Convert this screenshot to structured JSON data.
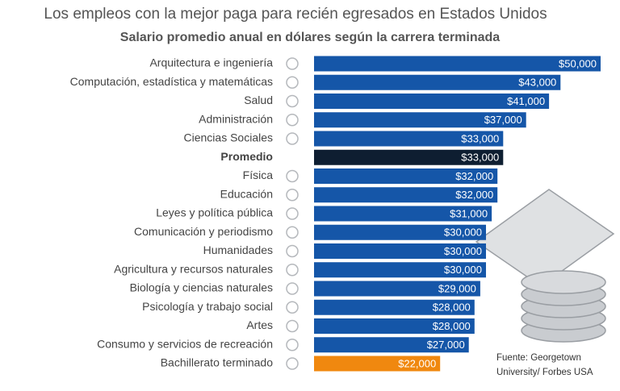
{
  "chart_data": {
    "type": "barh",
    "title": "Los empleos con la mejor paga para recién egresados en Estados Unidos",
    "subtitle": "Salario promedio anual en dólares según la carrera terminada",
    "categories": [
      "Arquitectura e ingeniería",
      "Computación, estadística y matemáticas",
      "Salud",
      "Administración",
      "Ciencias Sociales",
      "Promedio",
      "Física",
      "Educación",
      "Leyes y política pública",
      "Comunicación y periodismo",
      "Humanidades",
      "Agricultura y recursos naturales",
      "Biología y ciencias naturales",
      "Psicología y trabajo social",
      "Artes",
      "Consumo y servicios de recreación",
      "Bachillerato terminado"
    ],
    "values": [
      50000,
      43000,
      41000,
      37000,
      33000,
      33000,
      32000,
      32000,
      31000,
      30000,
      30000,
      30000,
      29000,
      28000,
      28000,
      27000,
      22000
    ],
    "value_labels": [
      "$50,000",
      "$43,000",
      "$41,000",
      "$37,000",
      "$33,000",
      "$33,000",
      "$32,000",
      "$32,000",
      "$31,000",
      "$30,000",
      "$30,000",
      "$30,000",
      "$29,000",
      "$28,000",
      "$28,000",
      "$27,000",
      "$22,000"
    ],
    "colors": [
      "#1556a8",
      "#1556a8",
      "#1556a8",
      "#1556a8",
      "#1556a8",
      "#0e1e31",
      "#1556a8",
      "#1556a8",
      "#1556a8",
      "#1556a8",
      "#1556a8",
      "#1556a8",
      "#1556a8",
      "#1556a8",
      "#1556a8",
      "#1556a8",
      "#f0880f"
    ],
    "highlight_index": 5,
    "source": [
      "Fuente: Georgetown",
      "University/ Forbes USA"
    ]
  }
}
